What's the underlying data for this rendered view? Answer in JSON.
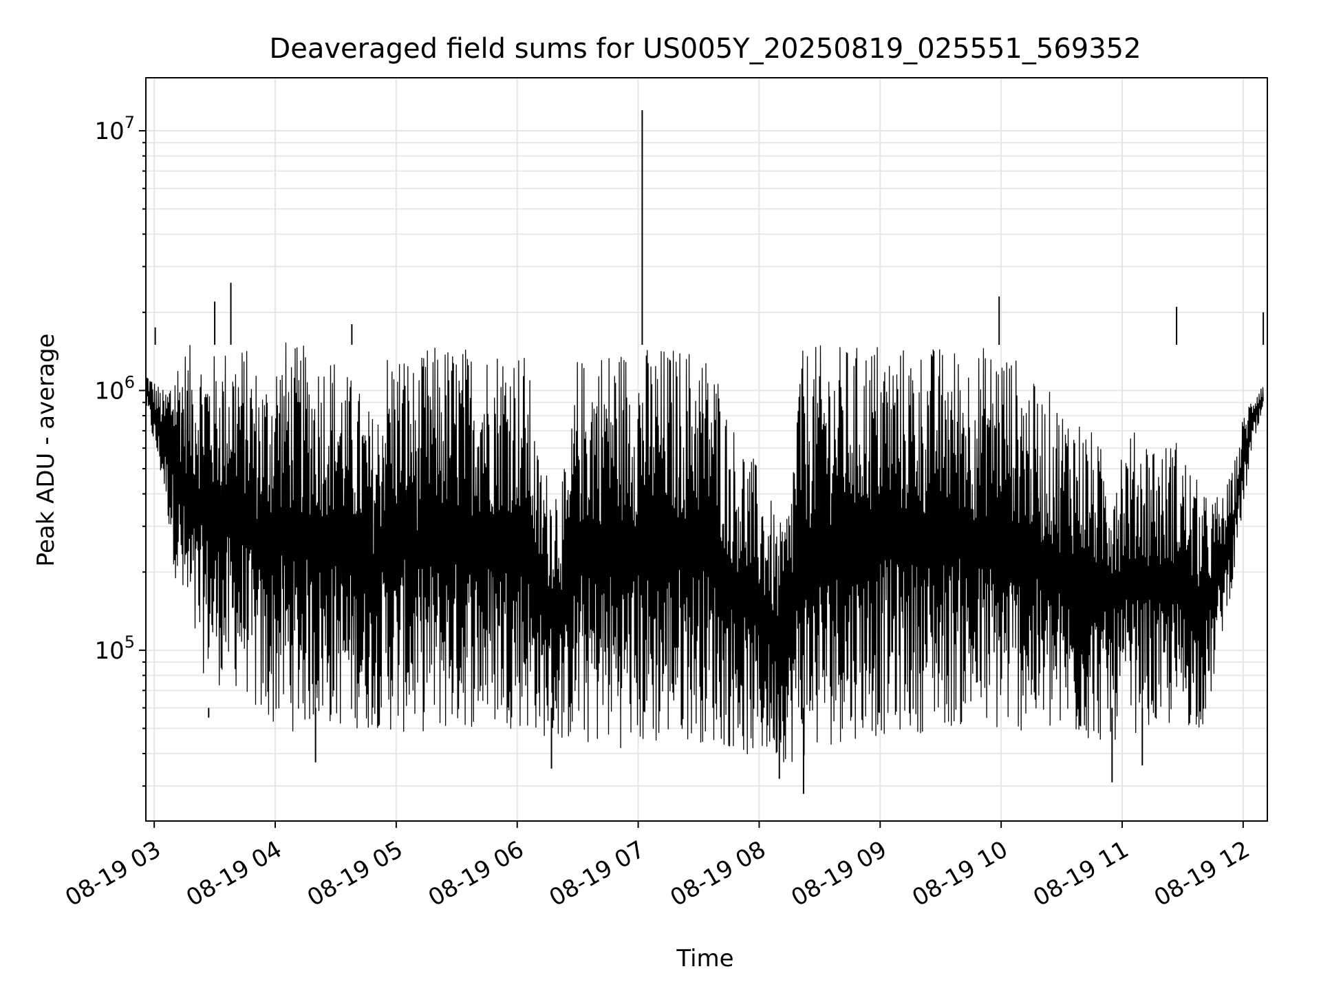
{
  "chart_data": {
    "type": "line",
    "title": "Deaveraged field sums for US005Y_20250819_025551_569352",
    "xlabel": "Time",
    "ylabel": "Peak ADU - average",
    "yscale": "log",
    "ylim": [
      22000,
      16000000
    ],
    "xlim": [
      "2025-08-19T02:55:51",
      "2025-08-19T12:12:00"
    ],
    "grid": true,
    "line_color": "#000000",
    "grid_color": "#e6e6e6",
    "x_ticks": [
      {
        "t": "2025-08-19T03:00:00",
        "label": "08-19 03"
      },
      {
        "t": "2025-08-19T04:00:00",
        "label": "08-19 04"
      },
      {
        "t": "2025-08-19T05:00:00",
        "label": "08-19 05"
      },
      {
        "t": "2025-08-19T06:00:00",
        "label": "08-19 06"
      },
      {
        "t": "2025-08-19T07:00:00",
        "label": "08-19 07"
      },
      {
        "t": "2025-08-19T08:00:00",
        "label": "08-19 08"
      },
      {
        "t": "2025-08-19T09:00:00",
        "label": "08-19 09"
      },
      {
        "t": "2025-08-19T10:00:00",
        "label": "08-19 10"
      },
      {
        "t": "2025-08-19T11:00:00",
        "label": "08-19 11"
      },
      {
        "t": "2025-08-19T12:00:00",
        "label": "08-19 12"
      }
    ],
    "y_ticks": [
      {
        "value": 100000,
        "base": "10",
        "exp": "5"
      },
      {
        "value": 1000000,
        "base": "10",
        "exp": "6"
      },
      {
        "value": 10000000,
        "base": "10",
        "exp": "7"
      }
    ],
    "series": [
      {
        "x": [
          "2025-08-19T02:56:00",
          "2025-08-19T03:00:00",
          "2025-08-19T03:05:00",
          "2025-08-19T03:10:00",
          "2025-08-19T03:15:00",
          "2025-08-19T03:20:00",
          "2025-08-19T03:25:00",
          "2025-08-19T03:30:00",
          "2025-08-19T03:35:00",
          "2025-08-19T03:40:00",
          "2025-08-19T03:45:00",
          "2025-08-19T03:50:00",
          "2025-08-19T03:55:00",
          "2025-08-19T04:00:00",
          "2025-08-19T04:05:00",
          "2025-08-19T04:10:00",
          "2025-08-19T04:15:00",
          "2025-08-19T04:20:00",
          "2025-08-19T04:25:00",
          "2025-08-19T04:30:00",
          "2025-08-19T04:35:00",
          "2025-08-19T04:40:00",
          "2025-08-19T04:45:00",
          "2025-08-19T04:50:00",
          "2025-08-19T04:55:00",
          "2025-08-19T05:00:00",
          "2025-08-19T05:05:00",
          "2025-08-19T05:10:00",
          "2025-08-19T05:15:00",
          "2025-08-19T05:20:00",
          "2025-08-19T05:25:00",
          "2025-08-19T05:30:00",
          "2025-08-19T05:35:00",
          "2025-08-19T05:40:00",
          "2025-08-19T05:45:00",
          "2025-08-19T05:50:00",
          "2025-08-19T05:55:00",
          "2025-08-19T06:00:00",
          "2025-08-19T06:05:00",
          "2025-08-19T06:10:00",
          "2025-08-19T06:15:00",
          "2025-08-19T06:20:00",
          "2025-08-19T06:25:00",
          "2025-08-19T06:30:00",
          "2025-08-19T06:35:00",
          "2025-08-19T06:40:00",
          "2025-08-19T06:45:00",
          "2025-08-19T06:50:00",
          "2025-08-19T06:55:00",
          "2025-08-19T07:00:00",
          "2025-08-19T07:05:00",
          "2025-08-19T07:10:00",
          "2025-08-19T07:15:00",
          "2025-08-19T07:20:00",
          "2025-08-19T07:25:00",
          "2025-08-19T07:30:00",
          "2025-08-19T07:35:00",
          "2025-08-19T07:40:00",
          "2025-08-19T07:45:00",
          "2025-08-19T07:50:00",
          "2025-08-19T07:55:00",
          "2025-08-19T08:00:00",
          "2025-08-19T08:05:00",
          "2025-08-19T08:10:00",
          "2025-08-19T08:15:00",
          "2025-08-19T08:20:00",
          "2025-08-19T08:25:00",
          "2025-08-19T08:30:00",
          "2025-08-19T08:35:00",
          "2025-08-19T08:40:00",
          "2025-08-19T08:45:00",
          "2025-08-19T08:50:00",
          "2025-08-19T08:55:00",
          "2025-08-19T09:00:00",
          "2025-08-19T09:05:00",
          "2025-08-19T09:10:00",
          "2025-08-19T09:15:00",
          "2025-08-19T09:20:00",
          "2025-08-19T09:25:00",
          "2025-08-19T09:30:00",
          "2025-08-19T09:35:00",
          "2025-08-19T09:40:00",
          "2025-08-19T09:45:00",
          "2025-08-19T09:50:00",
          "2025-08-19T09:55:00",
          "2025-08-19T10:00:00",
          "2025-08-19T10:05:00",
          "2025-08-19T10:10:00",
          "2025-08-19T10:15:00",
          "2025-08-19T10:20:00",
          "2025-08-19T10:25:00",
          "2025-08-19T10:30:00",
          "2025-08-19T10:35:00",
          "2025-08-19T10:40:00",
          "2025-08-19T10:45:00",
          "2025-08-19T10:50:00",
          "2025-08-19T10:55:00",
          "2025-08-19T11:00:00",
          "2025-08-19T11:05:00",
          "2025-08-19T11:10:00",
          "2025-08-19T11:15:00",
          "2025-08-19T11:20:00",
          "2025-08-19T11:25:00",
          "2025-08-19T11:30:00",
          "2025-08-19T11:35:00",
          "2025-08-19T11:40:00",
          "2025-08-19T11:45:00",
          "2025-08-19T11:50:00",
          "2025-08-19T11:55:00",
          "2025-08-19T12:00:00",
          "2025-08-19T12:05:00",
          "2025-08-19T12:10:00"
        ],
        "envelope_low": [
          850000,
          600000,
          400000,
          200000,
          120000,
          90000,
          80000,
          75000,
          70000,
          70000,
          70000,
          55000,
          50000,
          50000,
          50000,
          48000,
          50000,
          50000,
          50000,
          50000,
          50000,
          50000,
          48000,
          50000,
          50000,
          45000,
          48000,
          48000,
          48000,
          48000,
          47000,
          48000,
          50000,
          50000,
          48000,
          50000,
          50000,
          50000,
          48000,
          48000,
          45000,
          44000,
          44000,
          44000,
          42000,
          42000,
          42000,
          42000,
          42000,
          41000,
          40000,
          42000,
          44000,
          45000,
          45000,
          44000,
          44000,
          42000,
          42000,
          40000,
          38000,
          38000,
          38000,
          38000,
          36000,
          38000,
          38000,
          40000,
          42000,
          44000,
          45000,
          46000,
          46000,
          46000,
          48000,
          48000,
          48000,
          48000,
          50000,
          50000,
          50000,
          50000,
          48000,
          48000,
          48000,
          46000,
          48000,
          48000,
          48000,
          46000,
          45000,
          45000,
          44000,
          44000,
          44000,
          44000,
          44000,
          46000,
          48000,
          48000,
          48000,
          48000,
          50000,
          50000,
          50000,
          50000,
          70000,
          120000,
          180000,
          350000,
          600000,
          800000
        ],
        "envelope_high": [
          1200000,
          1100000,
          1000000,
          1400000,
          1500000,
          1500000,
          1500000,
          1400000,
          1500000,
          1600000,
          1500000,
          1300000,
          1200000,
          1500000,
          1600000,
          1500000,
          1500000,
          1400000,
          1500000,
          1400000,
          1200000,
          1100000,
          900000,
          800000,
          1500000,
          1500000,
          1500000,
          1200000,
          1500000,
          1500000,
          1550000,
          1500000,
          1500000,
          1550000,
          1500000,
          1550000,
          1600000,
          1500000,
          1400000,
          600000,
          500000,
          500000,
          500000,
          1400000,
          1300000,
          1500000,
          1500000,
          1500000,
          1500000,
          1500000,
          1500000,
          1500000,
          1500000,
          1500000,
          1500000,
          1500000,
          1400000,
          1200000,
          800000,
          700000,
          600000,
          500000,
          400000,
          300000,
          400000,
          1400000,
          1500000,
          1500000,
          1500000,
          1500000,
          1500000,
          1500000,
          1600000,
          1600000,
          1500000,
          1500000,
          1500000,
          1500000,
          1500000,
          1500000,
          1500000,
          1500000,
          1400000,
          1500000,
          1500000,
          1600000,
          1400000,
          1300000,
          1100000,
          1000000,
          1000000,
          900000,
          900000,
          800000,
          700000,
          600000,
          600000,
          700000,
          700000,
          700000,
          700000,
          600000,
          700000,
          600000,
          500000,
          400000,
          400000,
          400000,
          500000,
          800000,
          1000000,
          1100000
        ]
      }
    ],
    "spikes": [
      {
        "t": "2025-08-19T07:02:00",
        "value": 12000000
      },
      {
        "t": "2025-08-19T03:38:00",
        "value": 2600000
      },
      {
        "t": "2025-08-19T03:30:00",
        "value": 2200000
      },
      {
        "t": "2025-08-19T09:59:00",
        "value": 2300000
      },
      {
        "t": "2025-08-19T11:27:00",
        "value": 2100000
      },
      {
        "t": "2025-08-19T12:10:00",
        "value": 2000000
      },
      {
        "t": "2025-08-19T04:38:00",
        "value": 1800000
      },
      {
        "t": "2025-08-19T03:00:30",
        "value": 1750000
      }
    ],
    "dips": [
      {
        "t": "2025-08-19T08:22:00",
        "value": 28000
      },
      {
        "t": "2025-08-19T10:55:00",
        "value": 31000
      },
      {
        "t": "2025-08-19T08:10:00",
        "value": 32000
      },
      {
        "t": "2025-08-19T11:10:00",
        "value": 36000
      },
      {
        "t": "2025-08-19T04:20:00",
        "value": 37000
      },
      {
        "t": "2025-08-19T06:17:00",
        "value": 35000
      },
      {
        "t": "2025-08-19T03:27:00",
        "value": 55000
      }
    ]
  }
}
